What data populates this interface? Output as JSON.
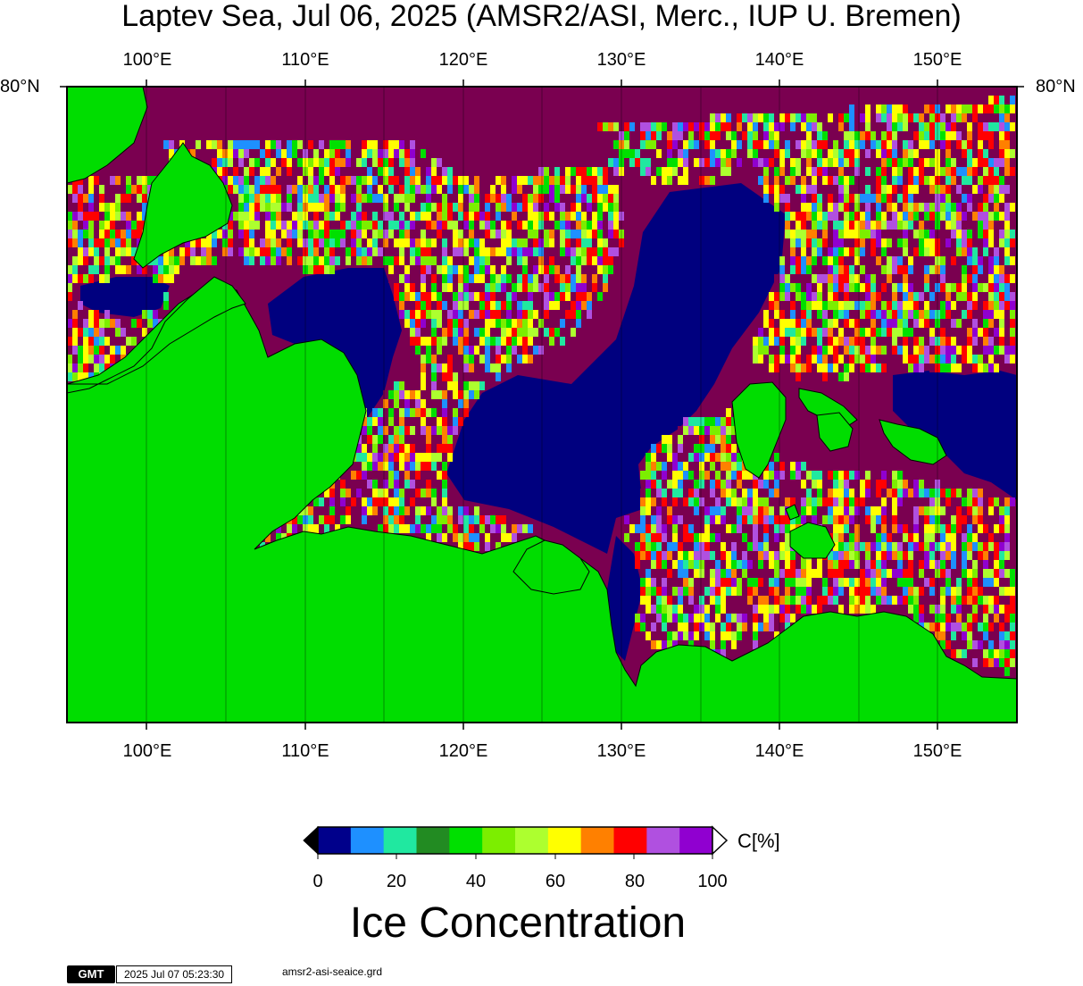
{
  "title": "Laptev Sea, Jul 06, 2025 (AMSR2/ASI, Merc., IUP U. Bremen)",
  "lon_labels": [
    "100°E",
    "110°E",
    "120°E",
    "130°E",
    "140°E",
    "150°E"
  ],
  "lat_label": "80°N",
  "colorbar": {
    "ticks": [
      "0",
      "20",
      "40",
      "60",
      "80",
      "100"
    ],
    "unit": "C[%]",
    "colors": [
      "#00008b",
      "#1e90ff",
      "#20e8a0",
      "#228b22",
      "#00e000",
      "#7cee00",
      "#adff2f",
      "#ffff00",
      "#ff8000",
      "#ff0000",
      "#b050e0",
      "#9000d0"
    ],
    "title": "Ice Concentration"
  },
  "footer": {
    "logo": "GMT",
    "timestamp": "2025 Jul 07 05:23:30",
    "file": "amsr2-asi-seaice.grd"
  },
  "map_colors": {
    "land": "#00dd00",
    "open_water": "#00007f",
    "max_ice": "#7a0050"
  }
}
